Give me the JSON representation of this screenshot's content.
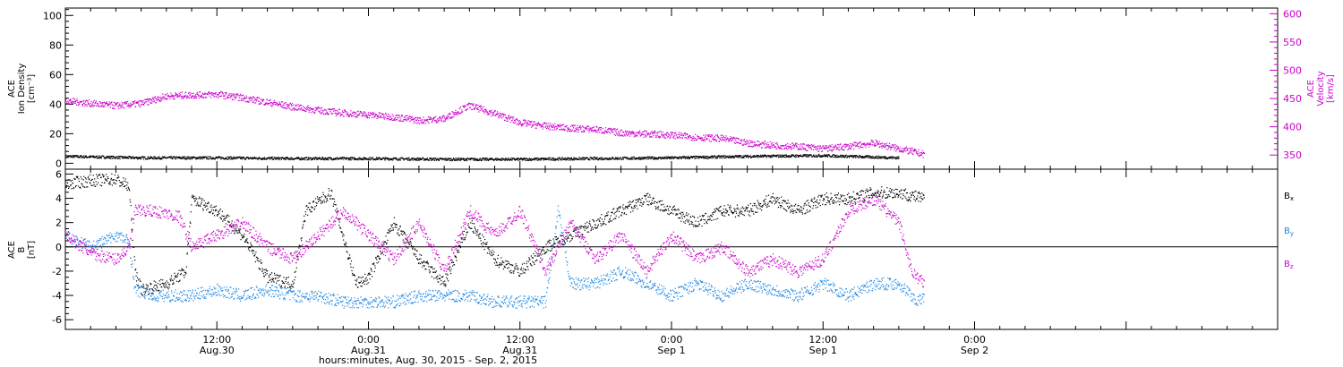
{
  "chart_data": {
    "type": "scatter",
    "x_range_hours": [
      0,
      96
    ],
    "x_ticks": [
      {
        "hour": 12,
        "time": "12:00",
        "date": "Aug.30"
      },
      {
        "hour": 24,
        "time": "0:00",
        "date": "Aug.31"
      },
      {
        "hour": 36,
        "time": "12:00",
        "date": "Aug.31"
      },
      {
        "hour": 48,
        "time": "0:00",
        "date": "Sep 1"
      },
      {
        "hour": 60,
        "time": "12:00",
        "date": "Sep 1"
      },
      {
        "hour": 72,
        "time": "0:00",
        "date": "Sep 2"
      }
    ],
    "xlabel": "hours:minutes, Aug. 30, 2015 - Sep. 2, 2015",
    "data_end_hour": 66,
    "panels": [
      {
        "id": "plasma",
        "ylabel": [
          "ACE",
          "Ion Density",
          "[cm⁻³]"
        ],
        "ylim": [
          -4,
          105
        ],
        "yticks": [
          0,
          20,
          40,
          60,
          80,
          100
        ],
        "y2label": [
          "ACE",
          "Velocity",
          "[km/s]"
        ],
        "y2lim": [
          325,
          610
        ],
        "y2ticks": [
          350,
          400,
          450,
          500,
          550,
          600
        ],
        "series": [
          {
            "name": "",
            "axis": "left",
            "color": "#000000",
            "knots": [
              [
                0,
                5
              ],
              [
                6,
                4
              ],
              [
                12,
                4
              ],
              [
                18,
                3.5
              ],
              [
                24,
                3.5
              ],
              [
                30,
                3
              ],
              [
                36,
                3
              ],
              [
                42,
                3.5
              ],
              [
                48,
                4
              ],
              [
                54,
                5
              ],
              [
                60,
                5.5
              ],
              [
                66,
                4
              ]
            ]
          },
          {
            "name": "",
            "axis": "right",
            "color": "#cc00cc",
            "knots": [
              [
                0,
                447
              ],
              [
                2,
                442
              ],
              [
                4,
                438
              ],
              [
                6,
                442
              ],
              [
                8,
                455
              ],
              [
                10,
                457
              ],
              [
                12,
                458
              ],
              [
                14,
                452
              ],
              [
                16,
                444
              ],
              [
                18,
                436
              ],
              [
                20,
                430
              ],
              [
                22,
                425
              ],
              [
                24,
                422
              ],
              [
                26,
                418
              ],
              [
                28,
                412
              ],
              [
                30,
                415
              ],
              [
                31,
                428
              ],
              [
                32,
                438
              ],
              [
                34,
                424
              ],
              [
                36,
                408
              ],
              [
                38,
                402
              ],
              [
                40,
                398
              ],
              [
                42,
                396
              ],
              [
                44,
                390
              ],
              [
                46,
                388
              ],
              [
                48,
                386
              ],
              [
                50,
                382
              ],
              [
                52,
                380
              ],
              [
                54,
                372
              ],
              [
                56,
                368
              ],
              [
                58,
                366
              ],
              [
                60,
                362
              ],
              [
                62,
                366
              ],
              [
                64,
                372
              ],
              [
                66,
                362
              ],
              [
                68,
                352
              ]
            ]
          }
        ]
      },
      {
        "id": "magnetic",
        "ylabel": [
          "ACE",
          "B",
          "[nT]"
        ],
        "ylim": [
          -6.8,
          6.4
        ],
        "yticks": [
          -6,
          -4,
          -2,
          0,
          2,
          4,
          6
        ],
        "series": [
          {
            "name": "B",
            "sub": "x",
            "color": "#000000",
            "knots": [
              [
                0,
                5.2
              ],
              [
                2,
                5.5
              ],
              [
                4,
                5.6
              ],
              [
                5,
                5
              ],
              [
                5.5,
                -2
              ],
              [
                6,
                -3.5
              ],
              [
                8,
                -3
              ],
              [
                9.5,
                -2
              ],
              [
                10,
                4
              ],
              [
                12,
                3
              ],
              [
                14,
                1
              ],
              [
                16,
                -2.5
              ],
              [
                18,
                -3
              ],
              [
                19,
                3
              ],
              [
                21,
                4.5
              ],
              [
                23,
                -3
              ],
              [
                24,
                -2.5
              ],
              [
                26,
                2
              ],
              [
                28,
                -1
              ],
              [
                30,
                -3
              ],
              [
                32,
                2
              ],
              [
                34,
                -1
              ],
              [
                36,
                -2
              ],
              [
                38,
                0
              ],
              [
                40,
                1
              ],
              [
                42,
                2
              ],
              [
                44,
                3
              ],
              [
                46,
                4
              ],
              [
                48,
                3
              ],
              [
                50,
                2
              ],
              [
                52,
                3
              ],
              [
                54,
                3
              ],
              [
                56,
                4
              ],
              [
                58,
                3
              ],
              [
                60,
                4
              ],
              [
                62,
                4
              ],
              [
                64,
                4.5
              ],
              [
                66,
                4.5
              ],
              [
                68,
                4
              ]
            ]
          },
          {
            "name": "B",
            "sub": "y",
            "color": "#1e88e5",
            "knots": [
              [
                0,
                1
              ],
              [
                2,
                0
              ],
              [
                4,
                1
              ],
              [
                5,
                0.5
              ],
              [
                5.5,
                -3.5
              ],
              [
                7,
                -4
              ],
              [
                9,
                -4
              ],
              [
                10,
                -4
              ],
              [
                12,
                -3.5
              ],
              [
                14,
                -4
              ],
              [
                16,
                -3.5
              ],
              [
                18,
                -4
              ],
              [
                20,
                -4
              ],
              [
                22,
                -4.5
              ],
              [
                24,
                -4.5
              ],
              [
                26,
                -4.5
              ],
              [
                28,
                -4
              ],
              [
                30,
                -4
              ],
              [
                32,
                -4
              ],
              [
                34,
                -4.5
              ],
              [
                36,
                -4.5
              ],
              [
                38,
                -4.5
              ],
              [
                39,
                3
              ],
              [
                40,
                -3
              ],
              [
                42,
                -3
              ],
              [
                44,
                -2
              ],
              [
                46,
                -3
              ],
              [
                48,
                -4
              ],
              [
                50,
                -3
              ],
              [
                52,
                -4
              ],
              [
                54,
                -3
              ],
              [
                56,
                -3.5
              ],
              [
                58,
                -4
              ],
              [
                60,
                -3
              ],
              [
                62,
                -4
              ],
              [
                64,
                -3
              ],
              [
                66,
                -3
              ],
              [
                67.5,
                -4.5
              ],
              [
                68,
                -4
              ]
            ]
          },
          {
            "name": "B",
            "sub": "z",
            "color": "#cc00cc",
            "knots": [
              [
                0,
                1
              ],
              [
                2,
                -0.5
              ],
              [
                4,
                -1
              ],
              [
                5,
                0
              ],
              [
                5.5,
                3
              ],
              [
                7,
                3
              ],
              [
                9,
                2.5
              ],
              [
                10,
                0
              ],
              [
                12,
                1
              ],
              [
                14,
                2
              ],
              [
                16,
                0
              ],
              [
                18,
                -1
              ],
              [
                20,
                1
              ],
              [
                22,
                3
              ],
              [
                24,
                1
              ],
              [
                26,
                -1
              ],
              [
                28,
                2
              ],
              [
                30,
                -2
              ],
              [
                32,
                3
              ],
              [
                34,
                1
              ],
              [
                36,
                3
              ],
              [
                38,
                -2
              ],
              [
                40,
                2
              ],
              [
                42,
                -1
              ],
              [
                44,
                1
              ],
              [
                46,
                -2
              ],
              [
                48,
                1
              ],
              [
                50,
                -1
              ],
              [
                52,
                0
              ],
              [
                54,
                -2
              ],
              [
                56,
                -1
              ],
              [
                58,
                -2
              ],
              [
                60,
                -1
              ],
              [
                62,
                3
              ],
              [
                64,
                4
              ],
              [
                66,
                2
              ],
              [
                67,
                -2
              ],
              [
                68,
                -3
              ]
            ]
          }
        ]
      }
    ]
  }
}
